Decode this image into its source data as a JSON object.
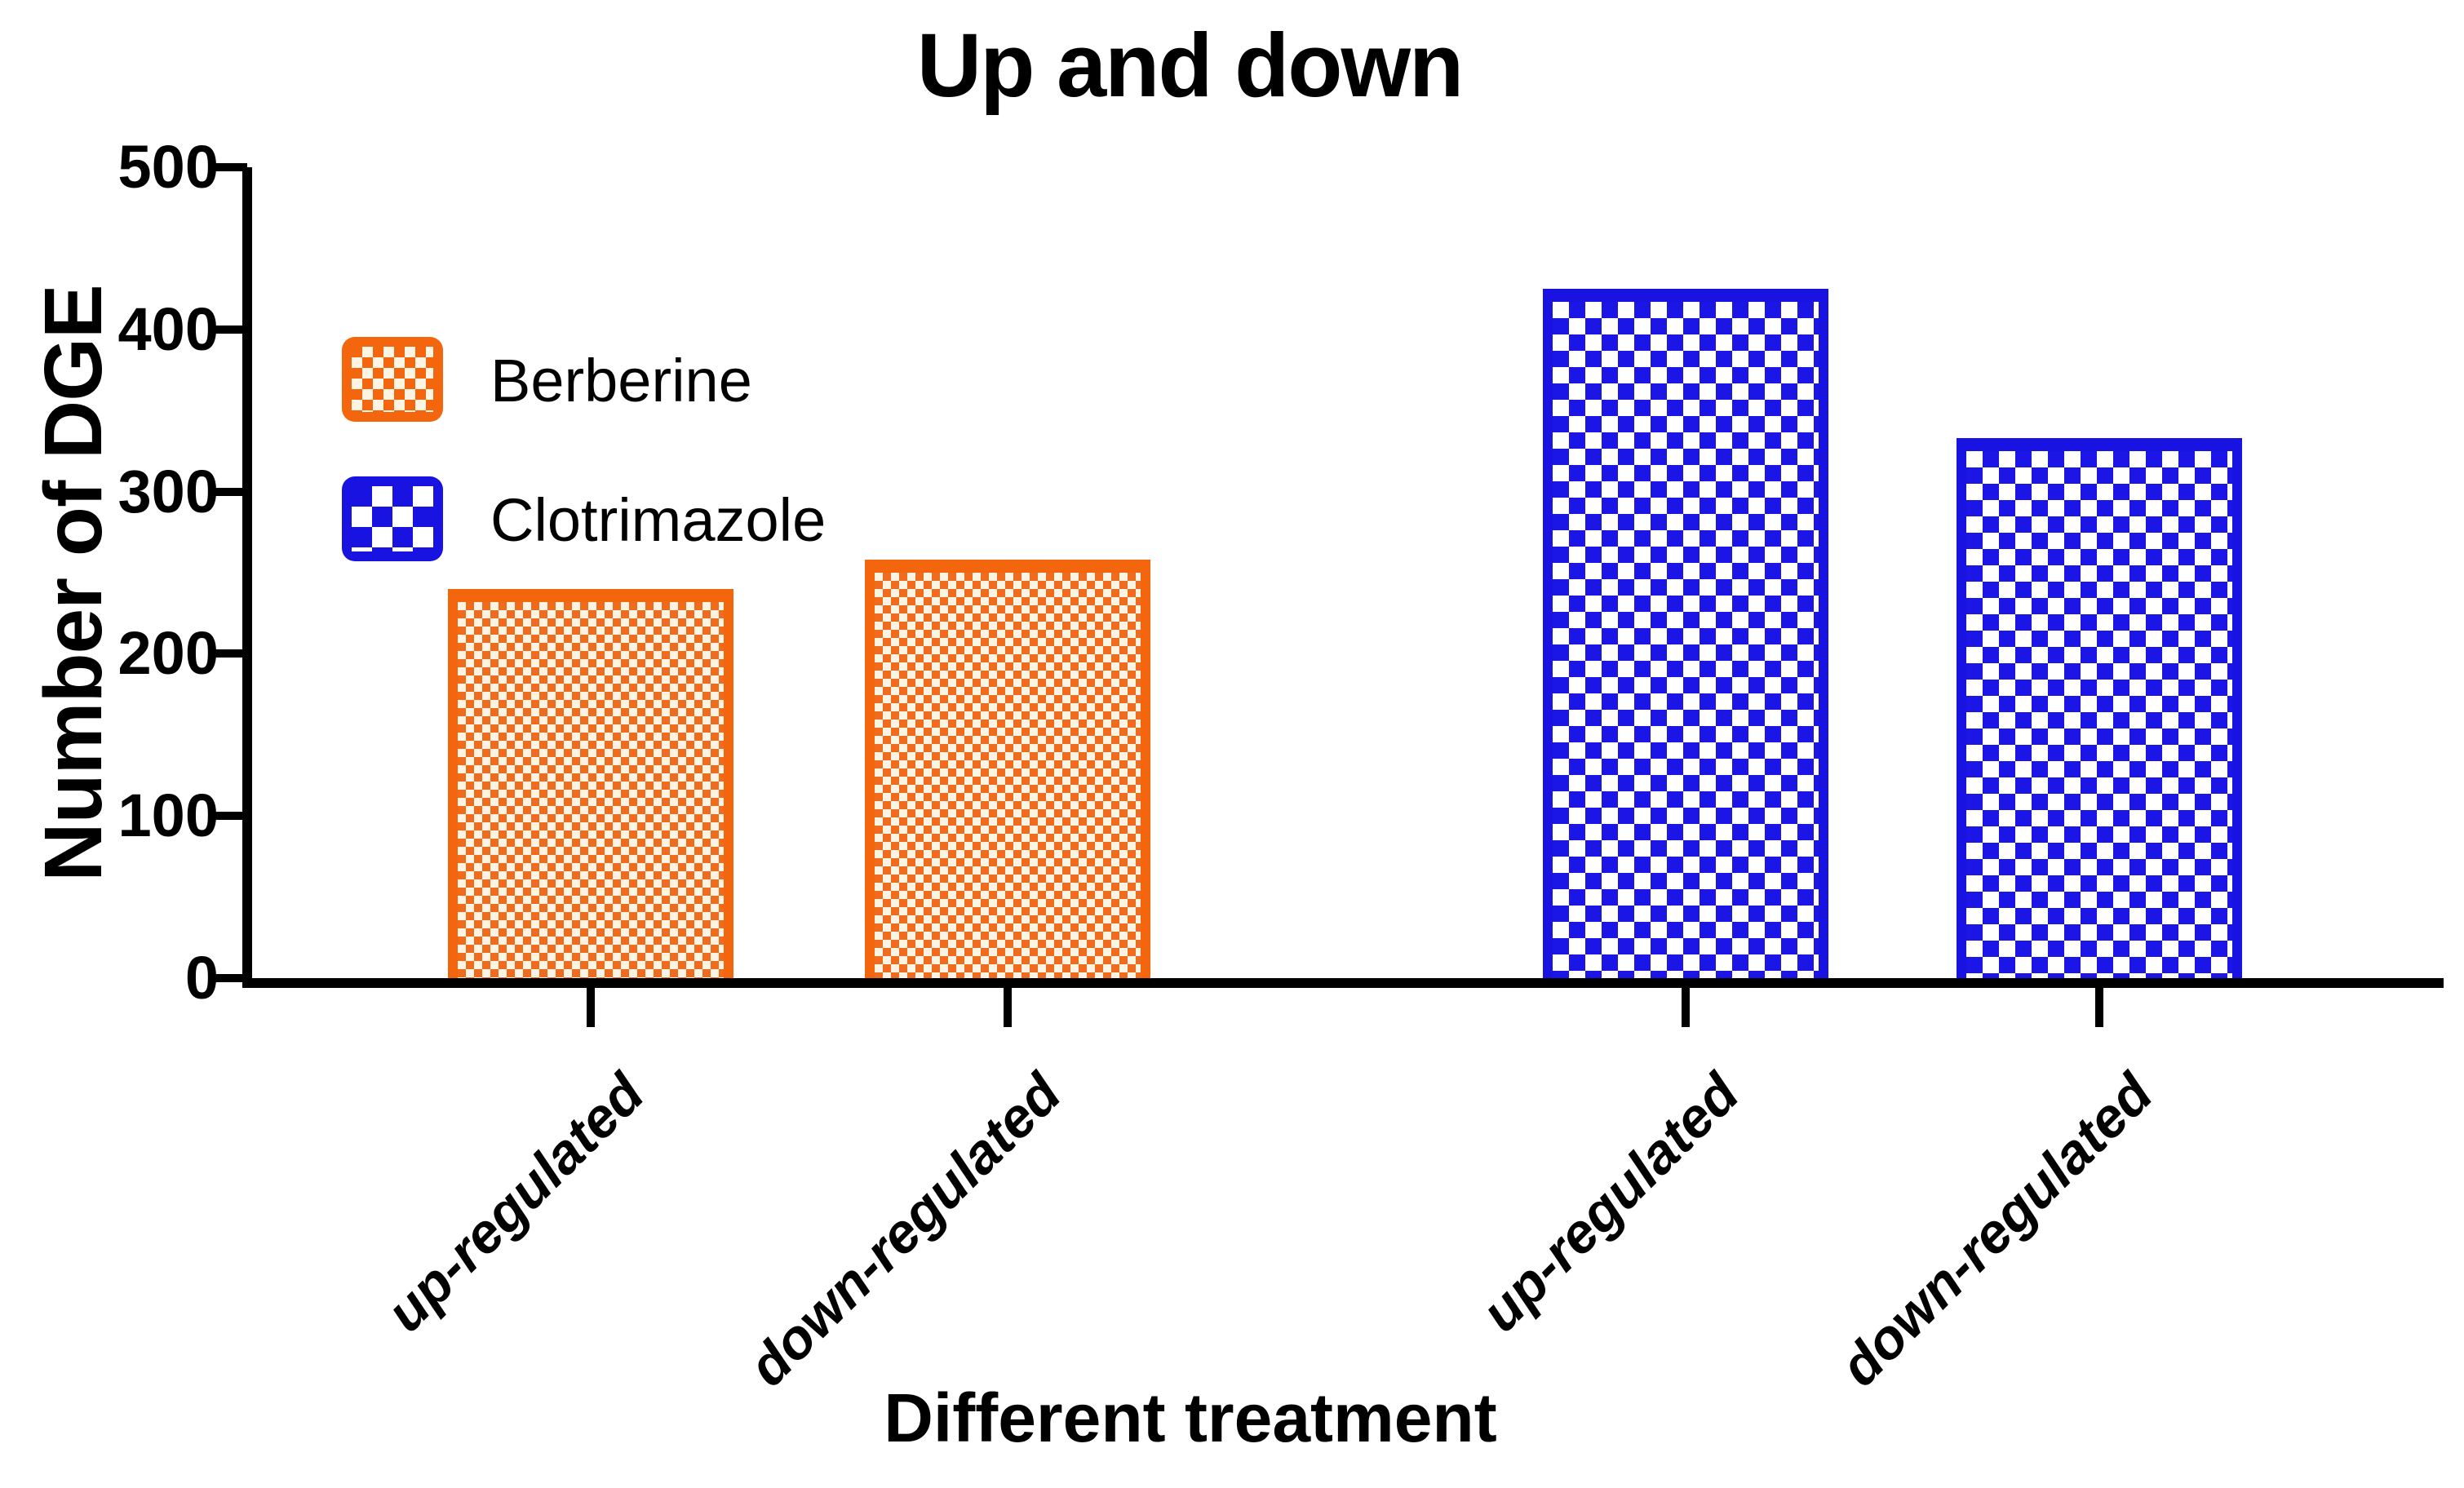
{
  "title": "Up and down",
  "y_axis": {
    "label": "Number of DGE",
    "ticks": [
      "500",
      "400",
      "300",
      "200",
      "100",
      "0"
    ]
  },
  "x_axis": {
    "label": "Different treatment",
    "categories": [
      "up-regulated",
      "down-regulated",
      "up-regulated",
      "down-regulated"
    ]
  },
  "legend": {
    "items": [
      {
        "label": "Berberine",
        "color": "#f4660d",
        "pattern": "fine-checkerboard"
      },
      {
        "label": "Clotrimazole",
        "color": "#1813e0",
        "pattern": "coarse-checkerboard"
      }
    ]
  },
  "chart_data": {
    "type": "bar",
    "title": "Up and down",
    "xlabel": "Different treatment",
    "ylabel": "Number of DGE",
    "ylim": [
      0,
      500
    ],
    "ytick_step": 100,
    "grid": false,
    "legend_position": "upper-left-inside",
    "categories": [
      "up-regulated",
      "down-regulated",
      "up-regulated",
      "down-regulated"
    ],
    "series": [
      {
        "name": "Berberine",
        "color": "#f4660d",
        "categories": [
          "up-regulated",
          "down-regulated"
        ],
        "values": [
          240,
          258
        ]
      },
      {
        "name": "Clotrimazole",
        "color": "#1813e0",
        "categories": [
          "up-regulated",
          "down-regulated"
        ],
        "values": [
          425,
          333
        ]
      }
    ],
    "bars": [
      {
        "series": "Berberine",
        "category": "up-regulated",
        "value": 240
      },
      {
        "series": "Berberine",
        "category": "down-regulated",
        "value": 258
      },
      {
        "series": "Clotrimazole",
        "category": "up-regulated",
        "value": 425
      },
      {
        "series": "Clotrimazole",
        "category": "down-regulated",
        "value": 333
      }
    ]
  }
}
